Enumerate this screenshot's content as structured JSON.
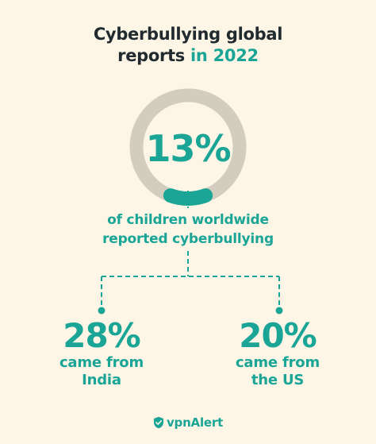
{
  "title": {
    "line1": "Cyberbullying global",
    "line2_prefix": "reports ",
    "line2_accent": "in 2022"
  },
  "ring": {
    "value": "13%"
  },
  "main_caption": {
    "line1": "of children worldwide",
    "line2": "reported cyberbullying"
  },
  "stats": [
    {
      "percent": "28%",
      "line1": "came from",
      "line2": "India"
    },
    {
      "percent": "20%",
      "line1": "came from",
      "line2": "the US"
    }
  ],
  "logo": {
    "text": "vpnAlert",
    "icon": "shield-check-icon"
  },
  "colors": {
    "background": "#fdf6e6",
    "accent": "#1aa596",
    "ring_track": "#d3cdc0",
    "title": "#212a2e"
  }
}
